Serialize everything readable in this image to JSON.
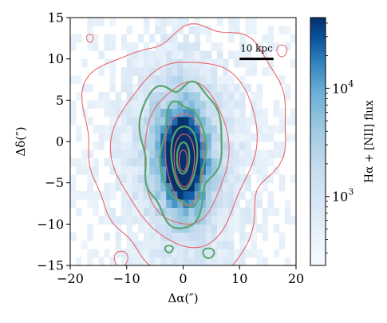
{
  "chart_data": {
    "type": "heatmap",
    "title": "",
    "xlabel": "Δα(″)",
    "ylabel": "Δδ(″)",
    "xlim": [
      -20,
      20
    ],
    "ylim": [
      -15,
      15
    ],
    "x_ticks": [
      -20,
      -10,
      0,
      10,
      20
    ],
    "x_tick_labels": [
      "−20",
      "−10",
      "0",
      "10",
      "20"
    ],
    "y_ticks": [
      -15,
      -10,
      -5,
      0,
      5,
      10,
      15
    ],
    "y_tick_labels": [
      "−15",
      "−10",
      "−5",
      "0",
      "5",
      "10",
      "15"
    ],
    "grid": false,
    "colormap": "Blues",
    "colorbar": {
      "label": "Hα + [NII] flux",
      "scale": "log",
      "range": [
        230,
        45000
      ],
      "ticks": [
        {
          "value": 1000,
          "base": "10",
          "exp": "3"
        },
        {
          "value": 10000,
          "base": "10",
          "exp": "4"
        }
      ]
    },
    "image_peak": {
      "x": 0,
      "y": -2,
      "flux": 45000
    },
    "scale_bar": {
      "label": "10 kpc",
      "x_start": 10,
      "x_end": 16,
      "y": 10
    },
    "contour_sets": [
      {
        "name": "",
        "color": "#e8676b",
        "levels": 6
      },
      {
        "name": "",
        "color": "#5aa56e",
        "levels": 4
      }
    ],
    "colors": {
      "stellar_contours": "#e8676b",
      "halpha_contours": "#5aa56e",
      "colormap_low": "#f7fbff",
      "colormap_high": "#08306b"
    }
  }
}
